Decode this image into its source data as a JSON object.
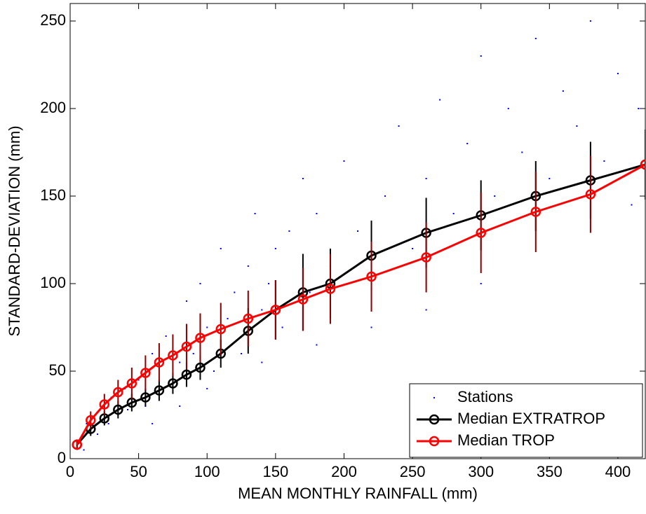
{
  "chart_data": {
    "type": "scatter",
    "xlabel": "MEAN MONTHLY RAINFALL (mm)",
    "ylabel": "STANDARD-DEVIATION (mm)",
    "xlim": [
      0,
      420
    ],
    "ylim": [
      0,
      260
    ],
    "xticks": [
      0,
      50,
      100,
      150,
      200,
      250,
      300,
      350,
      400
    ],
    "yticks": [
      0,
      50,
      100,
      150,
      200,
      250
    ],
    "legend": "lower right",
    "series": [
      {
        "name": "Stations",
        "type": "scatter",
        "color": "#0000ff",
        "x": [
          10,
          12,
          20,
          22,
          28,
          30,
          35,
          40,
          42,
          50,
          55,
          60,
          65,
          70,
          75,
          80,
          85,
          90,
          95,
          100,
          105,
          110,
          115,
          120,
          125,
          130,
          135,
          140,
          145,
          150,
          155,
          160,
          170,
          175,
          180,
          190,
          200,
          210,
          220,
          230,
          240,
          250,
          260,
          270,
          280,
          290,
          300,
          310,
          320,
          330,
          340,
          350,
          360,
          370,
          380,
          390,
          400,
          410,
          415,
          60,
          80,
          100,
          140,
          180,
          220,
          260,
          300
        ],
        "values": [
          5,
          20,
          14,
          30,
          20,
          35,
          25,
          40,
          28,
          45,
          30,
          60,
          40,
          70,
          45,
          55,
          90,
          60,
          100,
          75,
          50,
          120,
          80,
          95,
          60,
          110,
          140,
          85,
          100,
          120,
          75,
          130,
          160,
          95,
          140,
          110,
          170,
          130,
          100,
          150,
          190,
          120,
          160,
          205,
          140,
          180,
          230,
          150,
          200,
          175,
          240,
          160,
          210,
          190,
          250,
          170,
          220,
          145,
          200,
          20,
          30,
          40,
          55,
          65,
          75,
          85,
          100
        ]
      },
      {
        "name": "Median EXTRATROP",
        "type": "line",
        "color": "#000000",
        "x": [
          5,
          15,
          25,
          35,
          45,
          55,
          65,
          75,
          85,
          95,
          110,
          130,
          150,
          170,
          190,
          220,
          260,
          300,
          340,
          380,
          420
        ],
        "values": [
          8,
          17,
          23,
          28,
          32,
          35,
          39,
          43,
          48,
          52,
          60,
          73,
          85,
          95,
          100,
          116,
          129,
          139,
          150,
          159,
          168
        ],
        "errors": [
          3,
          4,
          4,
          5,
          5,
          5,
          6,
          6,
          7,
          7,
          8,
          13,
          17,
          22,
          20,
          20,
          20,
          20,
          20,
          22,
          20
        ]
      },
      {
        "name": "Median TROP",
        "type": "line",
        "color": "#ff0000",
        "x": [
          5,
          15,
          25,
          35,
          45,
          55,
          65,
          75,
          85,
          95,
          110,
          130,
          150,
          170,
          190,
          220,
          260,
          300,
          340,
          380,
          420
        ],
        "values": [
          8,
          22,
          31,
          38,
          43,
          49,
          55,
          59,
          64,
          69,
          74,
          80,
          85,
          91,
          97,
          104,
          115,
          129,
          141,
          151,
          168
        ],
        "errors": [
          3,
          5,
          6,
          7,
          9,
          10,
          11,
          12,
          13,
          14,
          15,
          16,
          17,
          18,
          20,
          20,
          20,
          23,
          23,
          22,
          20
        ]
      }
    ]
  }
}
